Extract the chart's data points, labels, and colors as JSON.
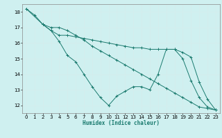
{
  "xlabel": "Humidex (Indice chaleur)",
  "bg_color": "#cff0f0",
  "grid_color": "#d4eded",
  "line_color": "#1a7a6e",
  "xlim": [
    -0.5,
    23.5
  ],
  "ylim": [
    11.5,
    18.5
  ],
  "xticks": [
    0,
    1,
    2,
    3,
    4,
    5,
    6,
    7,
    8,
    9,
    10,
    11,
    12,
    13,
    14,
    15,
    16,
    17,
    18,
    19,
    20,
    21,
    22,
    23
  ],
  "yticks": [
    12,
    13,
    14,
    15,
    16,
    17,
    18
  ],
  "series1_x": [
    0,
    1,
    2,
    3,
    4,
    5,
    6,
    7,
    8,
    9,
    10,
    11,
    12,
    13,
    14,
    15,
    16,
    17,
    18,
    19,
    20,
    21,
    22,
    23
  ],
  "series1_y": [
    18.2,
    17.8,
    17.2,
    17.0,
    17.0,
    16.8,
    16.5,
    16.2,
    15.8,
    15.5,
    15.2,
    14.9,
    14.6,
    14.3,
    14.0,
    13.7,
    13.4,
    13.1,
    12.8,
    12.5,
    12.2,
    11.9,
    11.8,
    11.7
  ],
  "series2_x": [
    0,
    2,
    3,
    4,
    5,
    6,
    7,
    8,
    9,
    10,
    11,
    12,
    13,
    14,
    15,
    16,
    17,
    18,
    19,
    20,
    21,
    22,
    23
  ],
  "series2_y": [
    18.2,
    17.2,
    16.8,
    16.1,
    15.2,
    14.8,
    14.0,
    13.2,
    12.5,
    12.0,
    12.6,
    12.9,
    13.2,
    13.2,
    13.0,
    14.0,
    15.6,
    15.6,
    15.0,
    13.6,
    12.5,
    11.9,
    11.7
  ],
  "series3_x": [
    2,
    3,
    4,
    5,
    6,
    7,
    8,
    9,
    10,
    11,
    12,
    13,
    14,
    15,
    16,
    17,
    18,
    19,
    20,
    21,
    22,
    23
  ],
  "series3_y": [
    17.2,
    16.8,
    16.5,
    16.5,
    16.4,
    16.3,
    16.2,
    16.1,
    16.0,
    15.9,
    15.8,
    15.7,
    15.7,
    15.6,
    15.6,
    15.6,
    15.6,
    15.4,
    15.1,
    13.5,
    12.4,
    11.7
  ]
}
